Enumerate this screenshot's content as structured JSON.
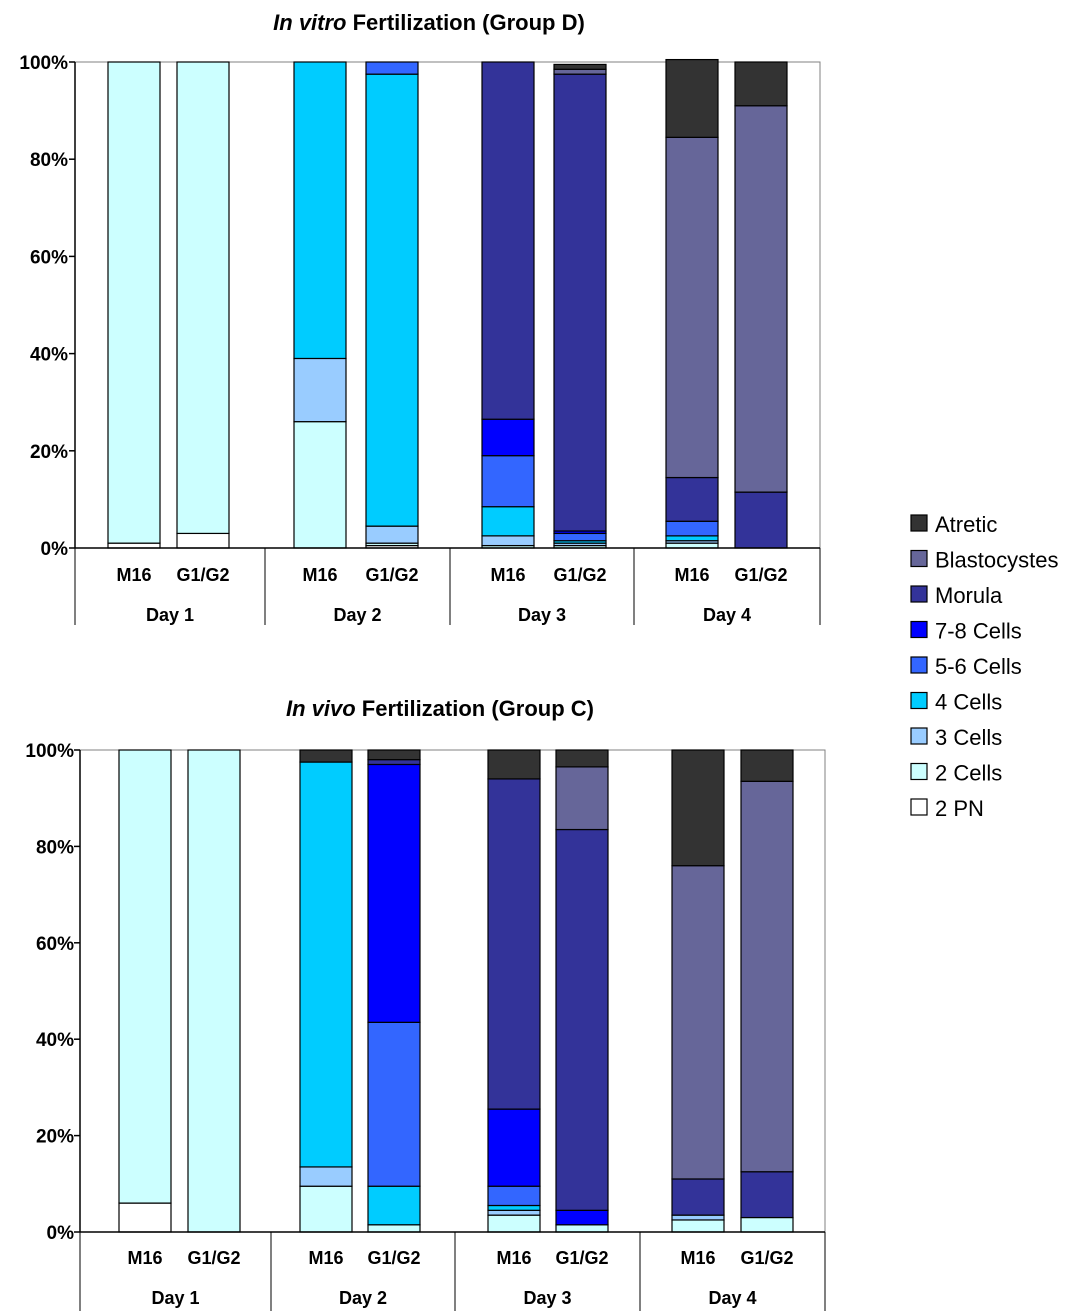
{
  "legend": [
    {
      "key": "atretic",
      "label": "Atretic",
      "color": "#333333"
    },
    {
      "key": "blasto",
      "label": "Blastocystes",
      "color": "#666699"
    },
    {
      "key": "morula",
      "label": "Morula",
      "color": "#333399"
    },
    {
      "key": "c78",
      "label": "7-8 Cells",
      "color": "#0000ff"
    },
    {
      "key": "c56",
      "label": "5-6 Cells",
      "color": "#3366ff"
    },
    {
      "key": "c4",
      "label": "4 Cells",
      "color": "#00ccff"
    },
    {
      "key": "c3",
      "label": "3 Cells",
      "color": "#99ccff"
    },
    {
      "key": "c2",
      "label": "2 Cells",
      "color": "#ccffff"
    },
    {
      "key": "pn",
      "label": "2 PN",
      "color": "#ffffff"
    }
  ],
  "chart_data": [
    {
      "type": "bar",
      "stacked": true,
      "title_italic": "In vitro",
      "title_rest": " Fertilization (Group D)",
      "yticks": [
        "0%",
        "20%",
        "40%",
        "60%",
        "80%",
        "100%"
      ],
      "ylim": [
        0,
        100
      ],
      "groups": [
        "Day 1",
        "Day 2",
        "Day 3",
        "Day 4"
      ],
      "categories": [
        "M16",
        "G1/G2",
        "M16",
        "G1/G2",
        "M16",
        "G1/G2",
        "M16",
        "G1/G2"
      ],
      "series": [
        {
          "key": "pn",
          "name": "2 PN",
          "values": [
            1,
            3,
            0,
            0.5,
            0,
            0,
            0,
            0
          ]
        },
        {
          "key": "c2",
          "name": "2 Cells",
          "values": [
            99,
            97,
            26,
            0.5,
            0.5,
            0.5,
            1,
            0
          ]
        },
        {
          "key": "c3",
          "name": "3 Cells",
          "values": [
            0,
            0,
            13,
            3.5,
            2,
            0.5,
            0.5,
            0
          ]
        },
        {
          "key": "c4",
          "name": "4 Cells",
          "values": [
            0,
            0,
            61,
            93,
            6,
            0.5,
            1,
            0
          ]
        },
        {
          "key": "c56",
          "name": "5-6 Cells",
          "values": [
            0,
            0,
            0,
            2.5,
            10.5,
            1.5,
            3,
            0
          ]
        },
        {
          "key": "c78",
          "name": "7-8 Cells",
          "values": [
            0,
            0,
            0,
            0,
            7.5,
            0.5,
            0,
            0
          ]
        },
        {
          "key": "morula",
          "name": "Morula",
          "values": [
            0,
            0,
            0,
            0,
            73.5,
            94,
            9,
            11.5
          ]
        },
        {
          "key": "blasto",
          "name": "Blastocystes",
          "values": [
            0,
            0,
            0,
            0,
            0,
            1,
            70,
            79.5
          ]
        },
        {
          "key": "atretic",
          "name": "Atretic",
          "values": [
            0,
            0,
            0,
            0,
            0,
            1,
            16,
            9
          ]
        }
      ]
    },
    {
      "type": "bar",
      "stacked": true,
      "title_italic": "In vivo",
      "title_rest": " Fertilization (Group C)",
      "yticks": [
        "0%",
        "20%",
        "40%",
        "60%",
        "80%",
        "100%"
      ],
      "ylim": [
        0,
        100
      ],
      "groups": [
        "Day 1",
        "Day 2",
        "Day 3",
        "Day 4"
      ],
      "categories": [
        "M16",
        "G1/G2",
        "M16",
        "G1/G2",
        "M16",
        "G1/G2",
        "M16",
        "G1/G2"
      ],
      "series": [
        {
          "key": "pn",
          "name": "2 PN",
          "values": [
            6,
            0,
            0,
            0,
            0,
            0,
            0,
            0
          ]
        },
        {
          "key": "c2",
          "name": "2 Cells",
          "values": [
            94,
            100,
            9.5,
            1.5,
            3.5,
            1.5,
            2.5,
            3
          ]
        },
        {
          "key": "c3",
          "name": "3 Cells",
          "values": [
            0,
            0,
            4,
            0,
            1,
            0,
            1,
            0
          ]
        },
        {
          "key": "c4",
          "name": "4 Cells",
          "values": [
            0,
            0,
            84,
            8,
            1,
            0,
            0,
            0
          ]
        },
        {
          "key": "c56",
          "name": "5-6 Cells",
          "values": [
            0,
            0,
            0,
            34,
            4,
            0,
            0,
            0
          ]
        },
        {
          "key": "c78",
          "name": "7-8 Cells",
          "values": [
            0,
            0,
            0,
            53.5,
            16,
            3,
            0,
            0
          ]
        },
        {
          "key": "morula",
          "name": "Morula",
          "values": [
            0,
            0,
            0,
            1,
            68.5,
            79,
            7.5,
            9.5
          ]
        },
        {
          "key": "blasto",
          "name": "Blastocystes",
          "values": [
            0,
            0,
            0,
            0,
            0,
            13,
            65,
            81
          ]
        },
        {
          "key": "atretic",
          "name": "Atretic",
          "values": [
            0,
            0,
            2.5,
            2,
            6,
            3.5,
            24,
            6.5
          ]
        }
      ]
    }
  ]
}
